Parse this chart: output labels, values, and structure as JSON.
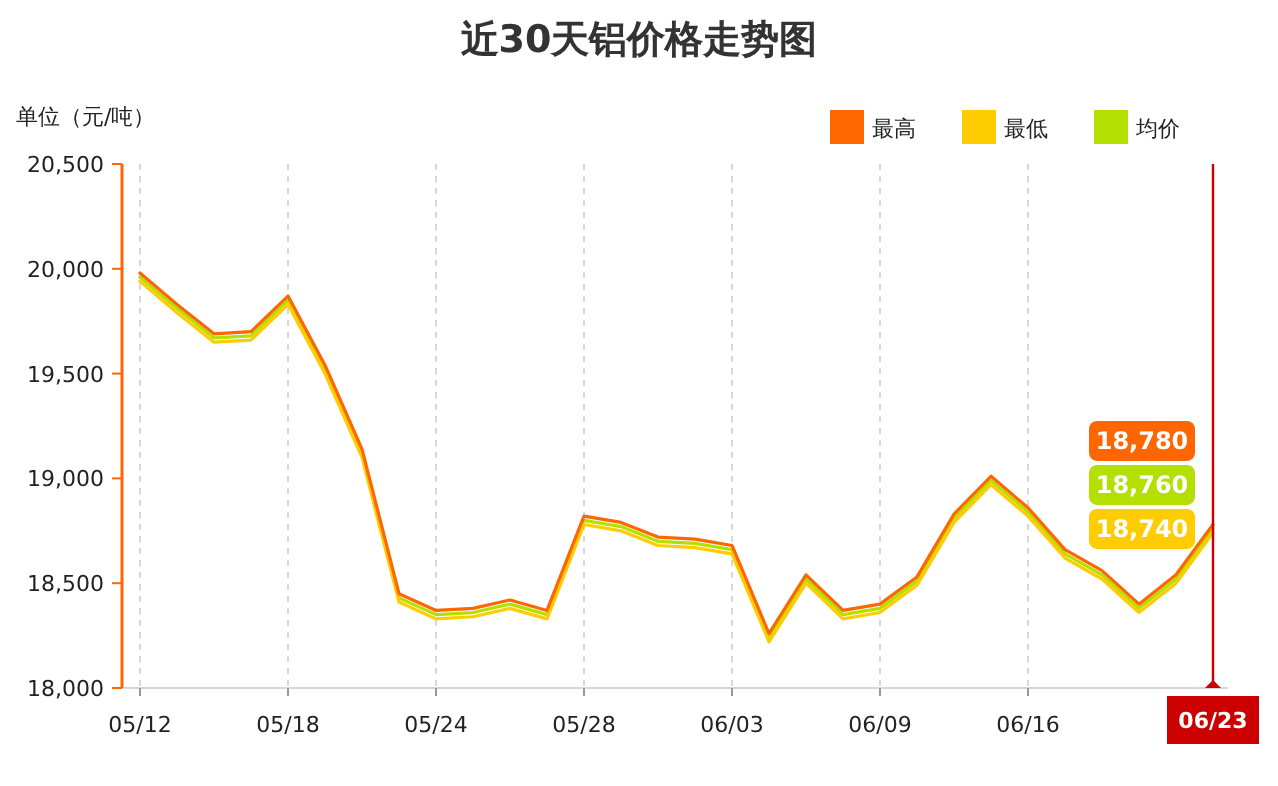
{
  "chart_data": {
    "type": "line",
    "title": "近30天铝价格走势图",
    "ylabel": "单位（元/吨）",
    "categories": [
      "05/12",
      null,
      null,
      null,
      "05/18",
      null,
      null,
      null,
      "05/24",
      null,
      null,
      null,
      "05/28",
      null,
      null,
      null,
      "06/03",
      null,
      null,
      null,
      "06/09",
      null,
      null,
      null,
      "06/16",
      null,
      null,
      null,
      null,
      "06/23"
    ],
    "series": [
      {
        "name": "最高",
        "color": "#ff6600",
        "values": [
          19980,
          19830,
          19690,
          19700,
          19870,
          19540,
          19140,
          18450,
          18370,
          18380,
          18420,
          18370,
          18820,
          18790,
          18720,
          18710,
          18680,
          18260,
          18540,
          18370,
          18400,
          18530,
          18830,
          19010,
          18860,
          18660,
          18560,
          18400,
          18540,
          18780
        ],
        "value_labels": [
          null,
          null,
          null,
          null,
          null,
          null,
          null,
          null,
          null,
          null,
          null,
          null,
          null,
          null,
          null,
          null,
          null,
          null,
          null,
          null,
          null,
          null,
          null,
          null,
          null,
          null,
          null,
          null,
          null,
          "18,780"
        ]
      },
      {
        "name": "最低",
        "color": "#ffcc00",
        "values": [
          19940,
          19790,
          19650,
          19660,
          19830,
          19500,
          19100,
          18410,
          18330,
          18340,
          18380,
          18330,
          18780,
          18750,
          18680,
          18670,
          18640,
          18220,
          18500,
          18330,
          18360,
          18490,
          18790,
          18970,
          18820,
          18620,
          18520,
          18360,
          18500,
          18740
        ],
        "value_labels": [
          null,
          null,
          null,
          null,
          null,
          null,
          null,
          null,
          null,
          null,
          null,
          null,
          null,
          null,
          null,
          null,
          null,
          null,
          null,
          null,
          null,
          null,
          null,
          null,
          null,
          null,
          null,
          null,
          null,
          "18,740"
        ]
      },
      {
        "name": "均价",
        "color": "#b3e000",
        "values": [
          19960,
          19810,
          19670,
          19680,
          19850,
          19520,
          19120,
          18430,
          18350,
          18360,
          18400,
          18350,
          18800,
          18770,
          18700,
          18690,
          18660,
          18240,
          18520,
          18350,
          18380,
          18510,
          18810,
          18990,
          18840,
          18640,
          18540,
          18380,
          18520,
          18760
        ],
        "value_labels": [
          null,
          null,
          null,
          null,
          null,
          null,
          null,
          null,
          null,
          null,
          null,
          null,
          null,
          null,
          null,
          null,
          null,
          null,
          null,
          null,
          null,
          null,
          null,
          null,
          null,
          null,
          null,
          null,
          null,
          "18,760"
        ]
      }
    ],
    "ylim": [
      18000,
      20500
    ],
    "yticks": [
      {
        "value": 18000,
        "label": "18,000"
      },
      {
        "value": 18500,
        "label": "18,500"
      },
      {
        "value": 19000,
        "label": "19,000"
      },
      {
        "value": 19500,
        "label": "19,500"
      },
      {
        "value": 20000,
        "label": "20,000"
      },
      {
        "value": 20500,
        "label": "20,500"
      }
    ],
    "grid": "x",
    "legend": "top right",
    "marker": "none",
    "line_style": "solid",
    "ref_lines": [
      {
        "axis": "x",
        "value": "06/23",
        "color": "#cc0000"
      }
    ]
  }
}
